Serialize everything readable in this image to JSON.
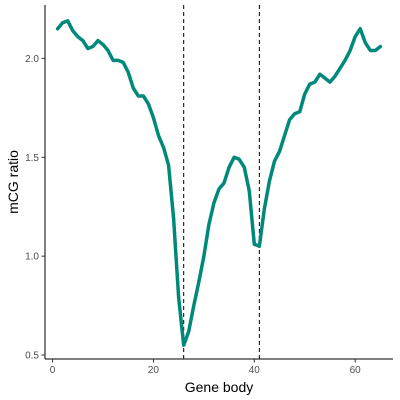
{
  "chart_data": {
    "type": "line",
    "title": "",
    "xlabel": "Gene body",
    "ylabel": "mCG ratio",
    "xlim": [
      -1.5,
      67.5
    ],
    "ylim": [
      0.48,
      2.27
    ],
    "xticks": [
      0,
      20,
      40,
      60
    ],
    "yticks": [
      0.5,
      1.0,
      1.5,
      2.0
    ],
    "xtick_labels": [
      "0",
      "20",
      "40",
      "60"
    ],
    "ytick_labels": [
      "0.5",
      "1.0",
      "1.5",
      "2.0"
    ],
    "grid": false,
    "legend": "none",
    "reference_lines_x": [
      26,
      41
    ],
    "series": [
      {
        "color": "#00897B",
        "x": [
          1,
          2,
          3,
          4,
          5,
          6,
          7,
          8,
          9,
          10,
          11,
          12,
          13,
          14,
          15,
          16,
          17,
          18,
          19,
          20,
          21,
          22,
          23,
          24,
          25,
          26,
          27,
          28,
          29,
          30,
          31,
          32,
          33,
          34,
          35,
          36,
          37,
          38,
          39,
          40,
          41,
          42,
          43,
          44,
          45,
          46,
          47,
          48,
          49,
          50,
          51,
          52,
          53,
          54,
          55,
          56,
          57,
          58,
          59,
          60,
          61,
          62,
          63,
          64,
          65
        ],
        "values": [
          2.15,
          2.18,
          2.19,
          2.14,
          2.11,
          2.09,
          2.05,
          2.06,
          2.09,
          2.07,
          2.04,
          1.99,
          1.99,
          1.98,
          1.93,
          1.85,
          1.81,
          1.81,
          1.77,
          1.7,
          1.61,
          1.55,
          1.46,
          1.19,
          0.79,
          0.55,
          0.62,
          0.75,
          0.87,
          1.0,
          1.16,
          1.27,
          1.34,
          1.37,
          1.45,
          1.5,
          1.49,
          1.45,
          1.33,
          1.06,
          1.05,
          1.24,
          1.38,
          1.48,
          1.53,
          1.61,
          1.69,
          1.72,
          1.73,
          1.82,
          1.87,
          1.88,
          1.92,
          1.9,
          1.88,
          1.91,
          1.95,
          1.99,
          2.04,
          2.11,
          2.15,
          2.08,
          2.04,
          2.04,
          2.06
        ]
      }
    ]
  }
}
